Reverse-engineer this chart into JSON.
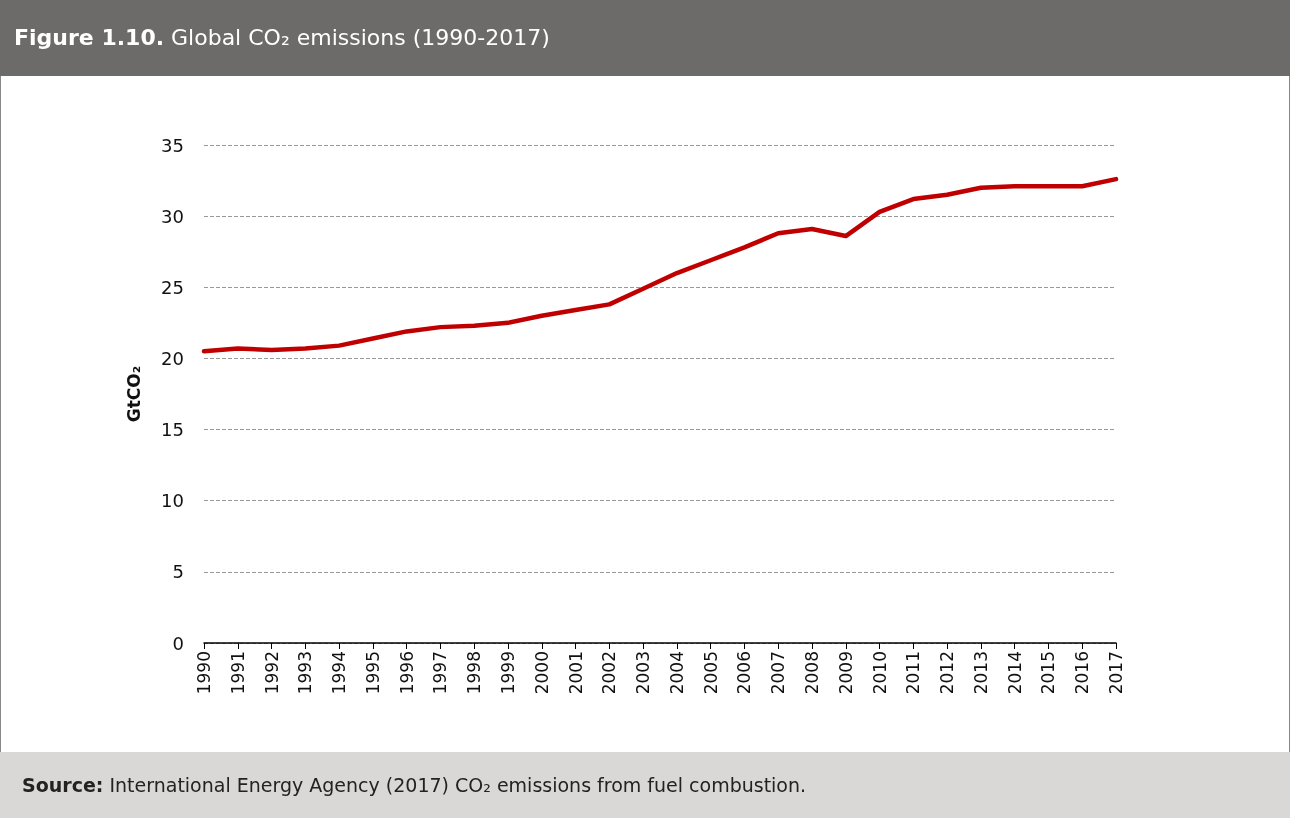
{
  "chart_data": {
    "type": "line",
    "title": "Figure 1.10. Global CO₂ emissions (1990-2017)",
    "ylabel": "GtCO₂",
    "categories": [
      "1990",
      "1991",
      "1992",
      "1993",
      "1994",
      "1995",
      "1996",
      "1997",
      "1998",
      "1999",
      "2000",
      "2001",
      "2002",
      "2003",
      "2004",
      "2005",
      "2006",
      "2007",
      "2008",
      "2009",
      "2010",
      "2011",
      "2012",
      "2013",
      "2014",
      "2015",
      "2016",
      "2017"
    ],
    "series": [
      {
        "color": "#c00000",
        "values": [
          20.5,
          20.7,
          20.6,
          20.7,
          20.9,
          21.4,
          21.9,
          22.2,
          22.3,
          22.5,
          23.0,
          23.4,
          23.8,
          24.9,
          26.0,
          26.9,
          27.8,
          28.8,
          29.1,
          28.6,
          30.3,
          31.2,
          31.5,
          32.0,
          32.1,
          32.1,
          32.1,
          32.6
        ]
      }
    ],
    "ylim": [
      0,
      35
    ],
    "yticks": [
      0,
      5,
      10,
      15,
      20,
      25,
      30,
      35
    ],
    "grid": "y",
    "marker": "none",
    "line_style": "solid",
    "annotations": [
      "Source: International Energy Agency (2017) CO₂ emissions from fuel combustion."
    ]
  }
}
